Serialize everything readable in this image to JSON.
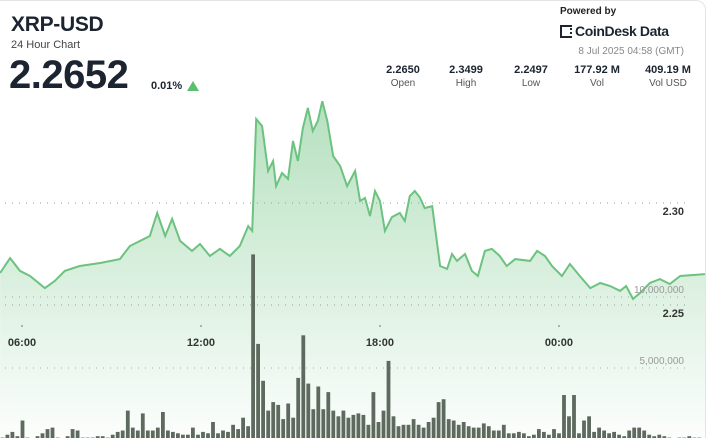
{
  "header": {
    "symbol": "XRP-USD",
    "subtitle": "24 Hour Chart",
    "price": "2.2652",
    "change": "0.01%",
    "change_direction": "up",
    "powered_by": "Powered by",
    "brand": "CoinDesk Data",
    "timestamp": "8 Jul 2025 04:58 (GMT)"
  },
  "stats": [
    {
      "value": "2.2650",
      "label": "Open"
    },
    {
      "value": "2.3499",
      "label": "High"
    },
    {
      "value": "2.2497",
      "label": "Low"
    },
    {
      "value": "177.92 M",
      "label": "Vol"
    },
    {
      "value": "409.19 M",
      "label": "Vol USD"
    }
  ],
  "colors": {
    "line": "#6cc27f",
    "fill": "#6cc27f",
    "volume": "#5e6a5e",
    "up": "#5cbf6f"
  },
  "chart_data": {
    "type": "area",
    "x_ticks": [
      "06:00",
      "12:00",
      "18:00",
      "00:00"
    ],
    "price_ticks": [
      {
        "value": 2.3,
        "label": "2.30"
      },
      {
        "value": 2.25,
        "label": "2.25"
      }
    ],
    "volume_ticks": [
      {
        "value": 10000000,
        "label": "10,000,000"
      },
      {
        "value": 5000000,
        "label": "5,000,000"
      }
    ],
    "grid": true,
    "price_series": [
      [
        "05:16",
        2.2657
      ],
      [
        "05:36",
        2.273
      ],
      [
        "05:56",
        2.2667
      ],
      [
        "06:16",
        2.2642
      ],
      [
        "06:46",
        2.2583
      ],
      [
        "07:06",
        2.2618
      ],
      [
        "07:26",
        2.2667
      ],
      [
        "07:56",
        2.2691
      ],
      [
        "08:37",
        2.2706
      ],
      [
        "09:17",
        2.2725
      ],
      [
        "09:37",
        2.2789
      ],
      [
        "10:17",
        2.2838
      ],
      [
        "10:32",
        2.2951
      ],
      [
        "10:48",
        2.2838
      ],
      [
        "11:02",
        2.2922
      ],
      [
        "11:18",
        2.2814
      ],
      [
        "11:42",
        2.2765
      ],
      [
        "11:58",
        2.2799
      ],
      [
        "12:18",
        2.274
      ],
      [
        "12:38",
        2.2775
      ],
      [
        "12:58",
        2.274
      ],
      [
        "13:18",
        2.2789
      ],
      [
        "13:35",
        2.2887
      ],
      [
        "13:43",
        2.2863
      ],
      [
        "13:51",
        2.3412
      ],
      [
        "14:03",
        2.3377
      ],
      [
        "14:15",
        2.3157
      ],
      [
        "14:25",
        2.3206
      ],
      [
        "14:31",
        2.3083
      ],
      [
        "14:43",
        2.3147
      ],
      [
        "14:55",
        2.3118
      ],
      [
        "15:05",
        2.3304
      ],
      [
        "15:15",
        2.3206
      ],
      [
        "15:25",
        2.3368
      ],
      [
        "15:35",
        2.3466
      ],
      [
        "15:45",
        2.3353
      ],
      [
        "15:55",
        2.3402
      ],
      [
        "16:04",
        2.3499
      ],
      [
        "16:14",
        2.3402
      ],
      [
        "16:26",
        2.323
      ],
      [
        "16:40",
        2.3181
      ],
      [
        "16:54",
        2.3083
      ],
      [
        "17:10",
        2.3157
      ],
      [
        "17:20",
        2.301
      ],
      [
        "17:30",
        2.3025
      ],
      [
        "17:40",
        2.2936
      ],
      [
        "17:50",
        2.3059
      ],
      [
        "18:00",
        2.301
      ],
      [
        "18:10",
        2.2863
      ],
      [
        "18:24",
        2.2931
      ],
      [
        "18:40",
        2.2951
      ],
      [
        "18:50",
        2.2912
      ],
      [
        "19:00",
        2.3034
      ],
      [
        "19:10",
        2.3059
      ],
      [
        "19:20",
        2.3029
      ],
      [
        "19:30",
        2.2975
      ],
      [
        "19:45",
        2.2985
      ],
      [
        "20:01",
        2.2691
      ],
      [
        "20:15",
        2.2677
      ],
      [
        "20:25",
        2.275
      ],
      [
        "20:35",
        2.2716
      ],
      [
        "20:51",
        2.275
      ],
      [
        "21:05",
        2.2667
      ],
      [
        "21:17",
        2.2642
      ],
      [
        "21:31",
        2.2765
      ],
      [
        "21:45",
        2.2775
      ],
      [
        "22:01",
        2.274
      ],
      [
        "22:15",
        2.2691
      ],
      [
        "22:32",
        2.2725
      ],
      [
        "23:02",
        2.2716
      ],
      [
        "23:16",
        2.2765
      ],
      [
        "23:32",
        2.274
      ],
      [
        "23:46",
        2.2691
      ],
      [
        "00:06",
        2.2642
      ],
      [
        "00:22",
        2.2701
      ],
      [
        "00:42",
        2.2642
      ],
      [
        "01:03",
        2.2583
      ],
      [
        "01:23",
        2.2608
      ],
      [
        "01:43",
        2.2593
      ],
      [
        "02:03",
        2.2569
      ],
      [
        "02:15",
        2.2593
      ],
      [
        "02:29",
        2.253
      ],
      [
        "02:43",
        2.2559
      ],
      [
        "03:03",
        2.2608
      ],
      [
        "03:23",
        2.2627
      ],
      [
        "03:43",
        2.2603
      ],
      [
        "04:04",
        2.2642
      ],
      [
        "04:58",
        2.2652
      ]
    ],
    "volume": [
      100000,
      300000,
      500000,
      200000,
      1300000,
      100000,
      0,
      200000,
      400000,
      700000,
      800000,
      100000,
      0,
      200000,
      700000,
      600000,
      100000,
      100000,
      100000,
      200000,
      200000,
      100000,
      300000,
      500000,
      600000,
      2000000,
      800000,
      600000,
      1800000,
      600000,
      600000,
      800000,
      1900000,
      600000,
      500000,
      400000,
      300000,
      300000,
      800000,
      300000,
      500000,
      400000,
      1200000,
      400000,
      600000,
      500000,
      1000000,
      700000,
      1500000,
      900000,
      13000000,
      6700000,
      4100000,
      2000000,
      2600000,
      2400000,
      1400000,
      2500000,
      1500000,
      4300000,
      7300000,
      3900000,
      2100000,
      3700000,
      2100000,
      3300000,
      2000000,
      1600000,
      2000000,
      1500000,
      1700000,
      1800000,
      1700000,
      1000000,
      3300000,
      1200000,
      2000000,
      5500000,
      1600000,
      900000,
      1000000,
      1000000,
      1400000,
      1000000,
      800000,
      1200000,
      1500000,
      2600000,
      2800000,
      1400000,
      1300000,
      1000000,
      1200000,
      900000,
      800000,
      800000,
      1100000,
      900000,
      600000,
      600000,
      1000000,
      400000,
      400000,
      500000,
      400000,
      200000,
      300000,
      700000,
      500000,
      300000,
      700000,
      400000,
      3100000,
      1600000,
      3100000,
      400000,
      1300000,
      1600000,
      500000,
      800000,
      600000,
      400000,
      500000,
      300000,
      200000,
      600000,
      800000,
      800000,
      600000,
      300000,
      200000,
      300000,
      200000,
      100000,
      0,
      100000,
      100000,
      200000,
      100000,
      100000,
      0
    ]
  }
}
